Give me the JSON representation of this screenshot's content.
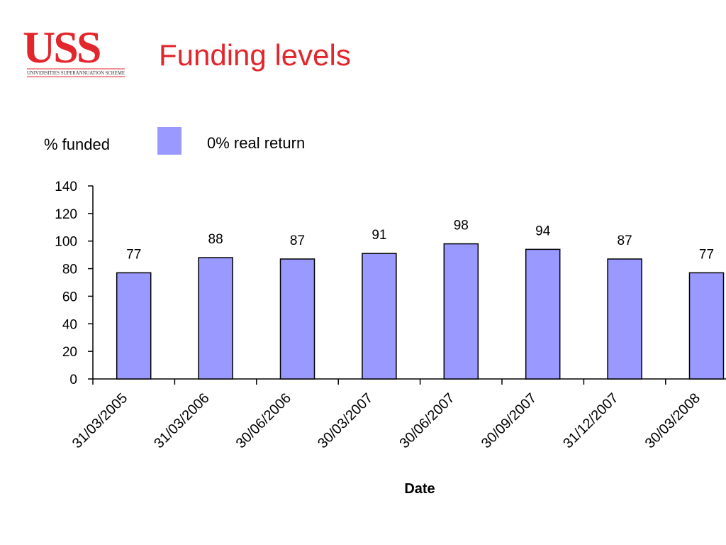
{
  "logo": {
    "text": "USS",
    "subtitle": "UNIVERSITIES SUPERANNUATION SCHEME"
  },
  "chart_data": {
    "type": "bar",
    "title": "Funding levels",
    "y_label": "% funded",
    "x_label": "Date",
    "categories": [
      "31/03/2005",
      "31/03/2006",
      "30/06/2006",
      "30/03/2007",
      "30/06/2007",
      "30/09/2007",
      "31/12/2007",
      "30/03/2008"
    ],
    "series": [
      {
        "name": "0% real return",
        "color": "#9999ff",
        "values": [
          77,
          88,
          87,
          91,
          98,
          94,
          87,
          77
        ]
      }
    ],
    "ylim": [
      0,
      140
    ],
    "yticks": [
      0,
      20,
      40,
      60,
      80,
      100,
      120,
      140
    ],
    "legend": "top"
  }
}
